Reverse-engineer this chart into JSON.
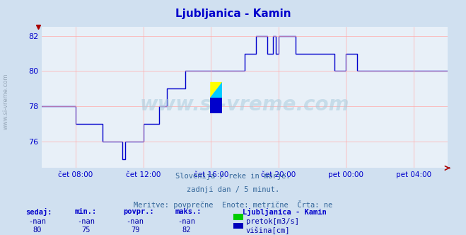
{
  "title": "Ljubljanica - Kamin",
  "subtitle_lines": [
    "Slovenija / reke in morje.",
    "zadnji dan / 5 minut.",
    "Meritve: povprečne  Enote: metrične  Črta: ne"
  ],
  "background_color": "#d0e0f0",
  "plot_bg_color": "#e8f0f8",
  "grid_color": "#ffaaaa",
  "line_color": "#0000cc",
  "title_color": "#0000cc",
  "axis_color": "#aa0000",
  "tick_color": "#0000cc",
  "xlabel_labels": [
    "čet 08:00",
    "čet 12:00",
    "čet 16:00",
    "čet 20:00",
    "pet 00:00",
    "pet 04:00"
  ],
  "tick_positions": [
    24,
    72,
    120,
    168,
    216,
    264
  ],
  "ylim": [
    74.5,
    82.5
  ],
  "yticks": [
    76,
    78,
    80,
    82
  ],
  "watermark_text": "www.si-vreme.com",
  "legend_title": "Ljubljanica - Kamin",
  "legend_pretok_color": "#00cc00",
  "legend_visina_color": "#0000bb",
  "table_headers": [
    "sedaj:",
    "min.:",
    "povpr.:",
    "maks.:"
  ],
  "table_row1": [
    "-nan",
    "-nan",
    "-nan",
    "-nan"
  ],
  "table_row2": [
    "80",
    "75",
    "79",
    "82"
  ],
  "table_header_color": "#0000cc",
  "table_value_color": "#0000aa",
  "subtitle_color": "#336699",
  "x_values": [
    0,
    1,
    2,
    3,
    4,
    5,
    6,
    7,
    8,
    9,
    10,
    11,
    12,
    13,
    14,
    15,
    16,
    17,
    18,
    19,
    20,
    21,
    22,
    23,
    24,
    25,
    26,
    27,
    28,
    29,
    30,
    31,
    32,
    33,
    34,
    35,
    36,
    37,
    38,
    39,
    40,
    41,
    42,
    43,
    44,
    45,
    46,
    47,
    48,
    49,
    50,
    51,
    52,
    53,
    54,
    55,
    56,
    57,
    58,
    59,
    60,
    61,
    62,
    63,
    64,
    65,
    66,
    67,
    68,
    69,
    70,
    71,
    72,
    73,
    74,
    75,
    76,
    77,
    78,
    79,
    80,
    81,
    82,
    83,
    84,
    85,
    86,
    87,
    88,
    89,
    90,
    91,
    92,
    93,
    94,
    95,
    96,
    97,
    98,
    99,
    100,
    101,
    102,
    103,
    104,
    105,
    106,
    107,
    108,
    109,
    110,
    111,
    112,
    113,
    114,
    115,
    116,
    117,
    118,
    119,
    120,
    121,
    122,
    123,
    124,
    125,
    126,
    127,
    128,
    129,
    130,
    131,
    132,
    133,
    134,
    135,
    136,
    137,
    138,
    139,
    140,
    141,
    142,
    143,
    144,
    145,
    146,
    147,
    148,
    149,
    150,
    151,
    152,
    153,
    154,
    155,
    156,
    157,
    158,
    159,
    160,
    161,
    162,
    163,
    164,
    165,
    166,
    167,
    168,
    169,
    170,
    171,
    172,
    173,
    174,
    175,
    176,
    177,
    178,
    179,
    180,
    181,
    182,
    183,
    184,
    185,
    186,
    187,
    188,
    189,
    190,
    191,
    192,
    193,
    194,
    195,
    196,
    197,
    198,
    199,
    200,
    201,
    202,
    203,
    204,
    205,
    206,
    207,
    208,
    209,
    210,
    211,
    212,
    213,
    214,
    215,
    216,
    217,
    218,
    219,
    220,
    221,
    222,
    223,
    224,
    225,
    226,
    227,
    228,
    229,
    230,
    231,
    232,
    233,
    234,
    235,
    236,
    237,
    238,
    239,
    240,
    241,
    242,
    243,
    244,
    245,
    246,
    247,
    248,
    249,
    250,
    251,
    252,
    253,
    254,
    255,
    256,
    257,
    258,
    259,
    260,
    261,
    262,
    263,
    264,
    265,
    266,
    267,
    268,
    269,
    270,
    271,
    272,
    273,
    274,
    275,
    276,
    277,
    278,
    279,
    280,
    281,
    282,
    283,
    284,
    285,
    286,
    287,
    288
  ],
  "y_values": [
    78,
    78,
    78,
    78,
    78,
    78,
    78,
    78,
    78,
    78,
    78,
    78,
    78,
    78,
    78,
    78,
    78,
    78,
    78,
    78,
    78,
    78,
    78,
    78,
    77,
    77,
    77,
    77,
    77,
    77,
    77,
    77,
    77,
    77,
    77,
    77,
    77,
    77,
    77,
    77,
    77,
    77,
    77,
    76,
    76,
    76,
    76,
    76,
    76,
    76,
    76,
    76,
    76,
    76,
    76,
    76,
    76,
    75,
    75,
    76,
    76,
    76,
    76,
    76,
    76,
    76,
    76,
    76,
    76,
    76,
    76,
    76,
    77,
    77,
    77,
    77,
    77,
    77,
    77,
    77,
    77,
    77,
    77,
    78,
    78,
    78,
    78,
    78,
    78,
    79,
    79,
    79,
    79,
    79,
    79,
    79,
    79,
    79,
    79,
    79,
    79,
    79,
    80,
    80,
    80,
    80,
    80,
    80,
    80,
    80,
    80,
    80,
    80,
    80,
    80,
    80,
    80,
    80,
    80,
    80,
    80,
    80,
    80,
    80,
    80,
    80,
    80,
    80,
    80,
    80,
    80,
    80,
    80,
    80,
    80,
    80,
    80,
    80,
    80,
    80,
    80,
    80,
    80,
    80,
    81,
    81,
    81,
    81,
    81,
    81,
    81,
    81,
    82,
    82,
    82,
    82,
    82,
    82,
    82,
    82,
    81,
    81,
    81,
    81,
    82,
    82,
    81,
    81,
    82,
    82,
    82,
    82,
    82,
    82,
    82,
    82,
    82,
    82,
    82,
    82,
    81,
    81,
    81,
    81,
    81,
    81,
    81,
    81,
    81,
    81,
    81,
    81,
    81,
    81,
    81,
    81,
    81,
    81,
    81,
    81,
    81,
    81,
    81,
    81,
    81,
    81,
    81,
    81,
    80,
    80,
    80,
    80,
    80,
    80,
    80,
    80,
    81,
    81,
    81,
    81,
    81,
    81,
    81,
    81,
    80,
    80,
    80,
    80,
    80,
    80,
    80,
    80,
    80,
    80,
    80,
    80,
    80,
    80,
    80,
    80,
    80,
    80,
    80,
    80,
    80,
    80,
    80,
    80,
    80,
    80,
    80,
    80,
    80,
    80,
    80,
    80,
    80,
    80,
    80,
    80,
    80,
    80,
    80,
    80,
    80,
    80,
    80,
    80,
    80,
    80,
    80,
    80,
    80,
    80,
    80,
    80,
    80,
    80,
    80,
    80,
    80,
    80,
    80,
    80,
    80,
    80,
    80,
    80,
    80
  ]
}
